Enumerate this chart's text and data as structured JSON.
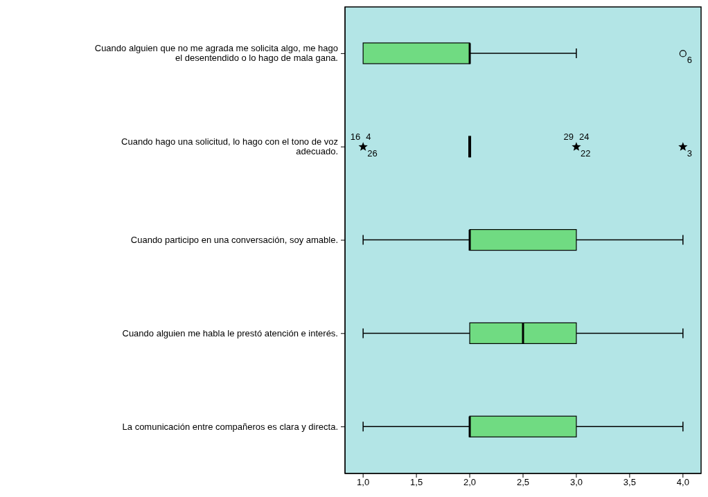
{
  "chart_data": {
    "type": "box",
    "orientation": "horizontal",
    "categories": [
      "Cuando alguien que no me agrada me solicita algo, me hago el desentendido o lo hago de mala gana.",
      "Cuando hago una solicitud, lo hago con el tono de voz adecuado.",
      "Cuando participo en una conversación, soy amable.",
      "Cuando alguien me habla le prestó atención e interés.",
      "La comunicación entre compañeros es clara y directa."
    ],
    "color": "#70db82",
    "boxes": [
      {
        "low": 1,
        "q1": 1,
        "median": 2,
        "q3": 2,
        "high": 3
      },
      {
        "low": 2,
        "q1": 2,
        "median": 2,
        "q3": 2,
        "high": 2
      },
      {
        "low": 1,
        "q1": 2,
        "median": 2,
        "q3": 3,
        "high": 4
      },
      {
        "low": 1,
        "q1": 2,
        "median": 2.5,
        "q3": 3,
        "high": 4
      },
      {
        "low": 1,
        "q1": 2,
        "median": 2,
        "q3": 3,
        "high": 4
      }
    ],
    "series": [
      {
        "type": "scatter",
        "marker": "circle",
        "color": "#000000",
        "x": [
          "Cuando alguien que no me agrada me solicita algo, me hago el desentendido o lo hago de mala gana."
        ],
        "values": [
          4
        ]
      },
      {
        "type": "scatter",
        "marker": "star",
        "color": "#000000",
        "x": [
          "Cuando hago una solicitud, lo hago con el tono de voz adecuado.",
          "Cuando hago una solicitud, lo hago con el tono de voz adecuado.",
          "Cuando hago una solicitud, lo hago con el tono de voz adecuado."
        ],
        "values": [
          1,
          3,
          4
        ]
      }
    ],
    "xlim": [
      0.83,
      4.17
    ],
    "xticks": [
      {
        "value": 1,
        "label": "1,0"
      },
      {
        "value": 1.5,
        "label": "1,5"
      },
      {
        "value": 2,
        "label": "2,0"
      },
      {
        "value": 2.5,
        "label": "2,5"
      },
      {
        "value": 3,
        "label": "3,0"
      },
      {
        "value": 3.5,
        "label": "3,5"
      },
      {
        "value": 4,
        "label": "4,0"
      }
    ],
    "annotations": [
      {
        "text": "6",
        "x": 4,
        "y": "Cuando alguien que no me agrada me solicita algo, me hago el desentendido o lo hago de mala gana."
      },
      {
        "text": "26",
        "x": 1,
        "y": "Cuando hago una solicitud, lo hago con el tono de voz adecuado."
      },
      {
        "text": "16",
        "x": 1,
        "y": "Cuando hago una solicitud, lo hago con el tono de voz adecuado."
      },
      {
        "text": "4",
        "x": 1,
        "y": "Cuando hago una solicitud, lo hago con el tono de voz adecuado."
      },
      {
        "text": "22",
        "x": 3,
        "y": "Cuando hago una solicitud, lo hago con el tono de voz adecuado."
      },
      {
        "text": "29",
        "x": 3,
        "y": "Cuando hago una solicitud, lo hago con el tono de voz adecuado."
      },
      {
        "text": "24",
        "x": 3,
        "y": "Cuando hago una solicitud, lo hago con el tono de voz adecuado."
      },
      {
        "text": "3",
        "x": 4,
        "y": "Cuando hago una solicitud, lo hago con el tono de voz adecuado."
      }
    ]
  }
}
